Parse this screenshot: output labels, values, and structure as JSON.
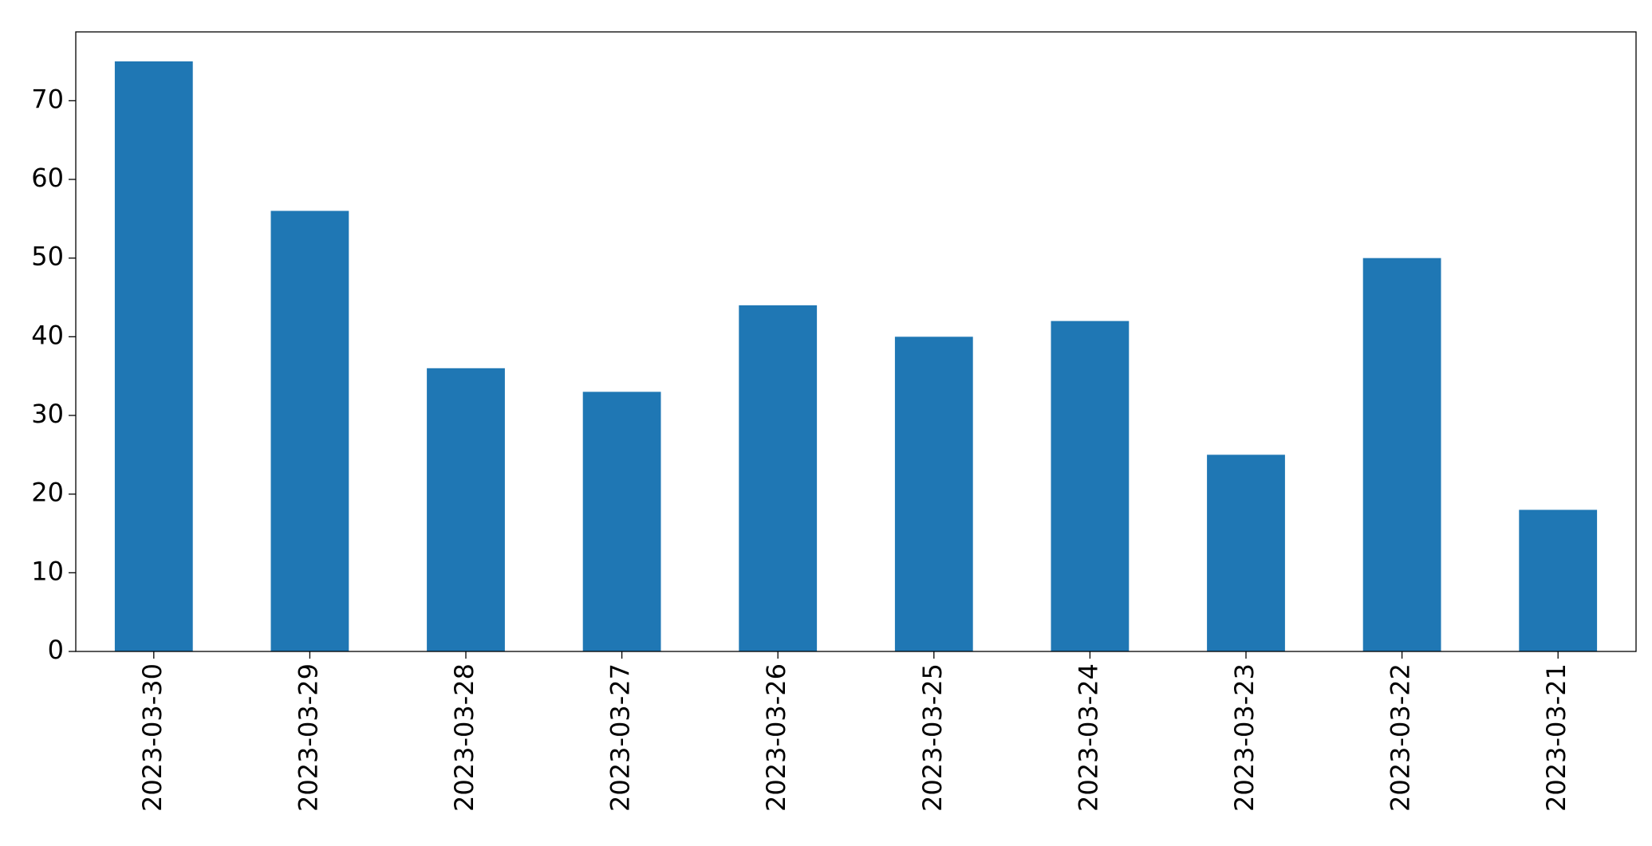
{
  "chart_data": {
    "type": "bar",
    "categories": [
      "2023-03-30",
      "2023-03-29",
      "2023-03-28",
      "2023-03-27",
      "2023-03-26",
      "2023-03-25",
      "2023-03-24",
      "2023-03-23",
      "2023-03-22",
      "2023-03-21"
    ],
    "values": [
      75,
      56,
      36,
      33,
      44,
      40,
      42,
      25,
      50,
      18
    ],
    "color": "#1f77b4",
    "ylim": [
      0,
      78.75
    ],
    "yticks": [
      0,
      10,
      20,
      30,
      40,
      50,
      60,
      70
    ],
    "grid": false
  }
}
